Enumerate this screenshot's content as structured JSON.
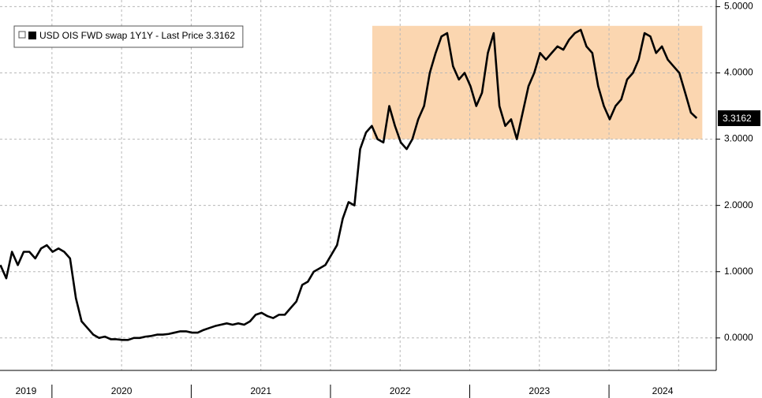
{
  "chart_data": {
    "type": "line",
    "series": [
      {
        "name": "USD OIS FWD swap 1Y1Y - Last Price 3.3162",
        "color": "#000000",
        "x": [
          2019.63,
          2019.672,
          2019.713,
          2019.755,
          2019.797,
          2019.838,
          2019.88,
          2019.922,
          2019.963,
          2020.005,
          2020.047,
          2020.088,
          2020.13,
          2020.172,
          2020.213,
          2020.255,
          2020.297,
          2020.338,
          2020.38,
          2020.422,
          2020.463,
          2020.505,
          2020.547,
          2020.588,
          2020.63,
          2020.672,
          2020.713,
          2020.755,
          2020.797,
          2020.838,
          2020.88,
          2020.922,
          2020.963,
          2021.005,
          2021.047,
          2021.088,
          2021.13,
          2021.172,
          2021.213,
          2021.255,
          2021.297,
          2021.338,
          2021.38,
          2021.422,
          2021.463,
          2021.505,
          2021.547,
          2021.588,
          2021.63,
          2021.672,
          2021.713,
          2021.755,
          2021.797,
          2021.838,
          2021.88,
          2021.922,
          2021.963,
          2022.005,
          2022.047,
          2022.088,
          2022.13,
          2022.172,
          2022.213,
          2022.255,
          2022.297,
          2022.338,
          2022.38,
          2022.422,
          2022.463,
          2022.505,
          2022.547,
          2022.588,
          2022.63,
          2022.672,
          2022.713,
          2022.755,
          2022.797,
          2022.838,
          2022.88,
          2022.922,
          2022.963,
          2023.005,
          2023.047,
          2023.088,
          2023.13,
          2023.172,
          2023.213,
          2023.255,
          2023.297,
          2023.338,
          2023.38,
          2023.422,
          2023.463,
          2023.505,
          2023.547,
          2023.588,
          2023.63,
          2023.672,
          2023.713,
          2023.755,
          2023.797,
          2023.838,
          2023.88,
          2023.922,
          2023.963,
          2024.005,
          2024.047,
          2024.088,
          2024.13,
          2024.172,
          2024.213,
          2024.255,
          2024.297,
          2024.338,
          2024.38,
          2024.422,
          2024.463,
          2024.505,
          2024.547,
          2024.588,
          2024.63
        ],
        "values": [
          1.1,
          0.9,
          1.3,
          1.1,
          1.3,
          1.3,
          1.2,
          1.35,
          1.4,
          1.3,
          1.35,
          1.3,
          1.2,
          0.6,
          0.25,
          0.15,
          0.05,
          0.0,
          0.02,
          -0.02,
          -0.02,
          -0.03,
          -0.03,
          0.0,
          0.0,
          0.02,
          0.03,
          0.05,
          0.05,
          0.06,
          0.08,
          0.1,
          0.1,
          0.08,
          0.08,
          0.12,
          0.15,
          0.18,
          0.2,
          0.22,
          0.2,
          0.22,
          0.2,
          0.25,
          0.35,
          0.38,
          0.33,
          0.3,
          0.35,
          0.35,
          0.45,
          0.55,
          0.8,
          0.85,
          1.0,
          1.05,
          1.1,
          1.25,
          1.4,
          1.8,
          2.05,
          2.0,
          2.85,
          3.1,
          3.2,
          3.0,
          2.95,
          3.5,
          3.2,
          2.95,
          2.85,
          3.0,
          3.3,
          3.5,
          4.0,
          4.3,
          4.55,
          4.6,
          4.1,
          3.9,
          4.0,
          3.8,
          3.5,
          3.7,
          4.3,
          4.6,
          3.5,
          3.2,
          3.3,
          3.0,
          3.4,
          3.8,
          4.0,
          4.3,
          4.2,
          4.3,
          4.4,
          4.35,
          4.5,
          4.6,
          4.65,
          4.4,
          4.3,
          3.8,
          3.5,
          3.3,
          3.5,
          3.6,
          3.9,
          4.0,
          4.2,
          4.6,
          4.55,
          4.3,
          4.4,
          4.2,
          4.1,
          4.0,
          3.7,
          3.4,
          3.3162
        ]
      }
    ],
    "band": {
      "x": [
        2022.3,
        2024.67
      ],
      "y": [
        3.0,
        4.71
      ],
      "color": "#fbd6b0"
    },
    "xlim": [
      2019.627,
      2024.77
    ],
    "xticks": [
      {
        "value": 2019,
        "label": "2019"
      },
      {
        "value": 2020,
        "label": "2020"
      },
      {
        "value": 2021,
        "label": "2021"
      },
      {
        "value": 2022,
        "label": "2022"
      },
      {
        "value": 2023,
        "label": "2023"
      },
      {
        "value": 2024,
        "label": "2024"
      }
    ],
    "ylim": [
      -0.49,
      5.1
    ],
    "yticks": [
      {
        "value": 0,
        "label": "0.0000"
      },
      {
        "value": 1,
        "label": "1.0000"
      },
      {
        "value": 2,
        "label": "2.0000"
      },
      {
        "value": 3,
        "label": "3.0000"
      },
      {
        "value": 4,
        "label": "4.0000"
      },
      {
        "value": 5,
        "label": "5.0000"
      }
    ],
    "grid": true,
    "legend": "top-left"
  }
}
